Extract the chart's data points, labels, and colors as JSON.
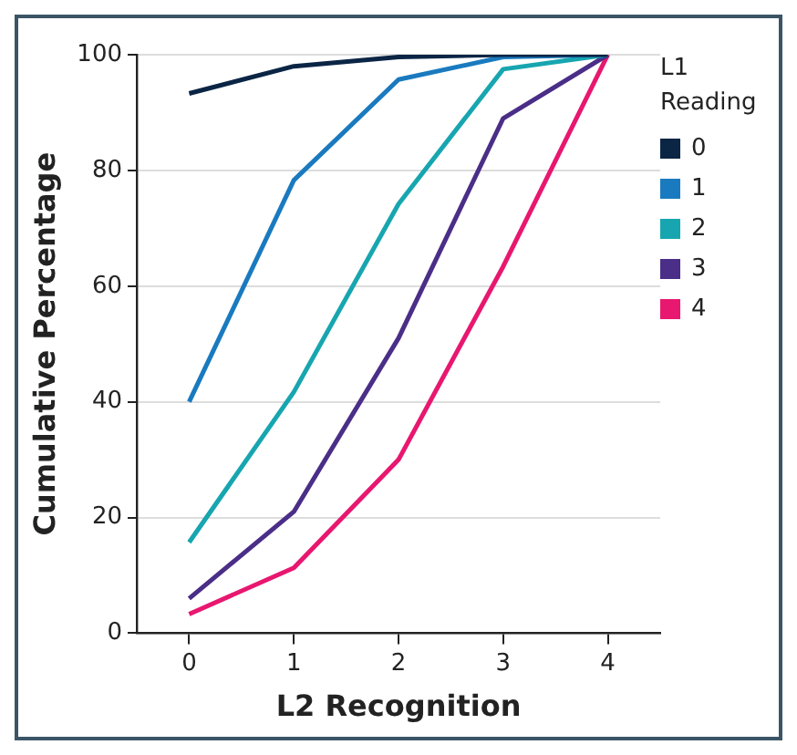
{
  "chart_data": {
    "type": "line",
    "xlabel": "L2 Recognition",
    "ylabel": "Cumulative Percentage",
    "legend_title": "L1 Reading",
    "x": [
      0,
      1,
      2,
      3,
      4
    ],
    "xlim": [
      -0.5,
      4.5
    ],
    "xticks": [
      0,
      1,
      2,
      3,
      4
    ],
    "ylim": [
      0,
      100
    ],
    "yticks": [
      0,
      20,
      40,
      60,
      80,
      100
    ],
    "grid": "y",
    "legend": "top right",
    "marker": "none",
    "line_style": "solid",
    "series": [
      {
        "name": "0",
        "color": "#0b2545",
        "values": [
          93.3,
          98,
          99.6,
          100,
          100
        ]
      },
      {
        "name": "1",
        "color": "#1a7abf",
        "values": [
          40,
          78.3,
          95.7,
          99.6,
          100
        ]
      },
      {
        "name": "2",
        "color": "#17a6b0",
        "values": [
          15.7,
          41.7,
          74.2,
          97.5,
          100
        ]
      },
      {
        "name": "3",
        "color": "#4a2e87",
        "values": [
          6,
          21,
          51,
          89,
          100
        ]
      },
      {
        "name": "4",
        "color": "#e8176f",
        "values": [
          3.3,
          11.3,
          30,
          63.4,
          100
        ]
      }
    ]
  }
}
